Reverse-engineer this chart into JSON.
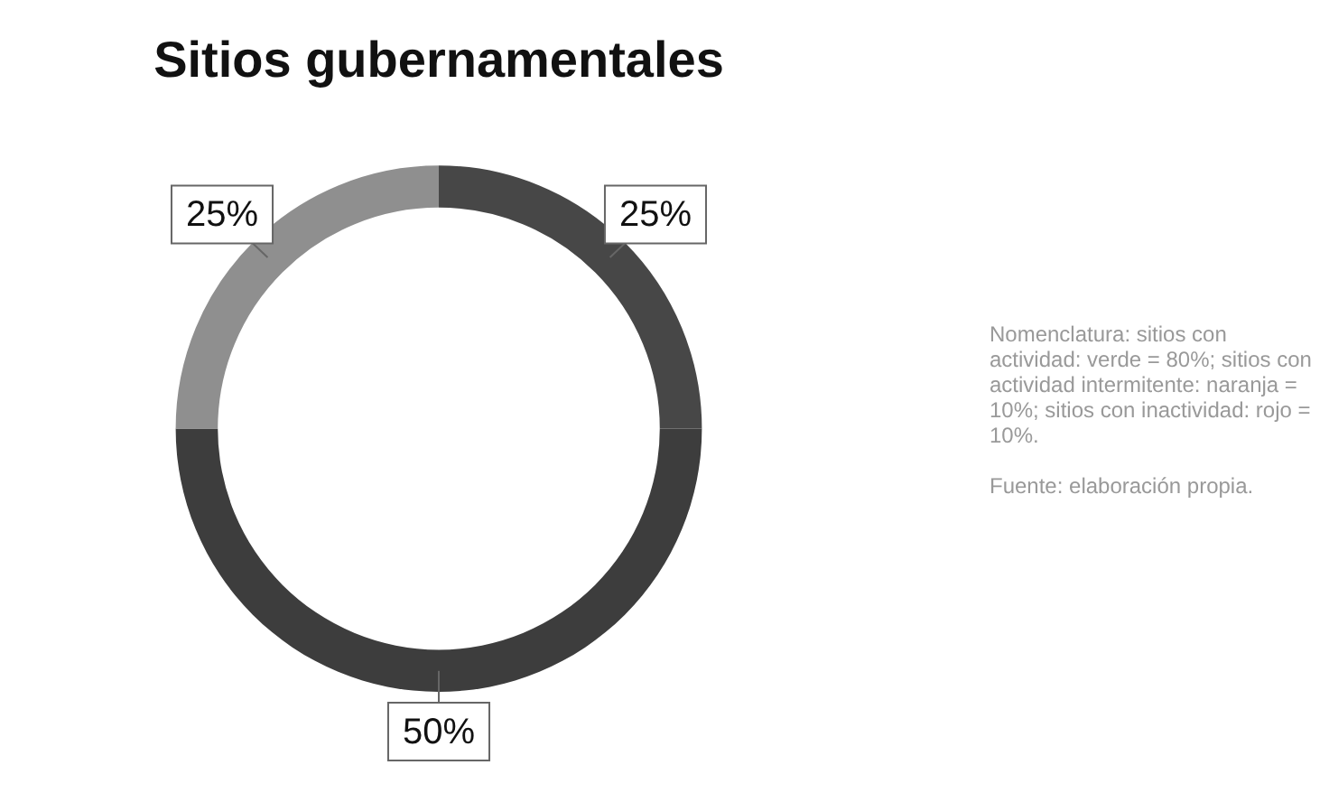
{
  "chart_data": {
    "type": "donut",
    "title": "Sitios gubernamentales",
    "categories": [
      null,
      null,
      null
    ],
    "values": [
      25,
      50,
      25
    ],
    "colors": [
      "#474747",
      "#3d3d3d",
      "#8f8f8f"
    ],
    "value_labels": [
      "25%",
      "50%",
      "25%"
    ],
    "legend": false,
    "annotations": [
      "Nomenclatura: sitios con actividad: verde = 80%; sitios con actividad intermitente: naranja = 10%; sitios con inactividad: rojo = 10%.",
      "Fuente: elaboración propia."
    ]
  }
}
